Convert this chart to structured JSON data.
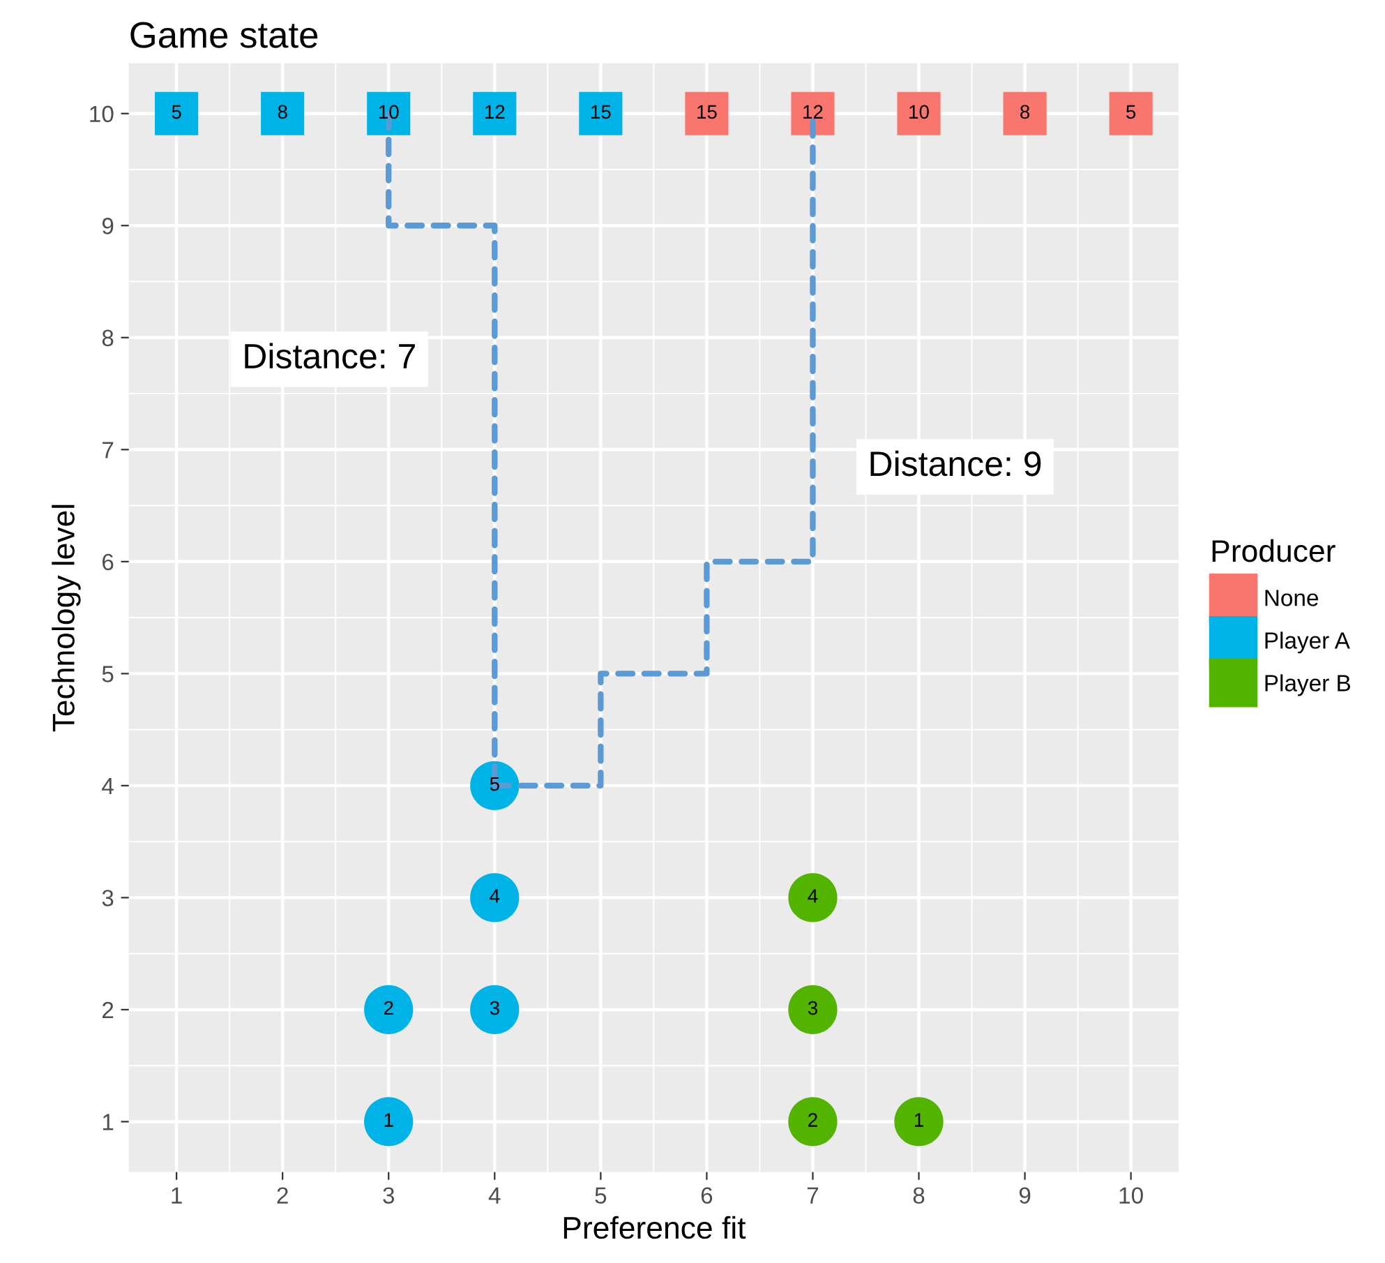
{
  "chart_data": {
    "type": "scatter",
    "title": "Game state",
    "xlabel": "Preference fit",
    "ylabel": "Technology level",
    "legend_title": "Producer",
    "xlim": [
      0.55,
      10.45
    ],
    "ylim": [
      0.55,
      10.45
    ],
    "xticks": [
      1,
      2,
      3,
      4,
      5,
      6,
      7,
      8,
      9,
      10
    ],
    "yticks": [
      1,
      2,
      3,
      4,
      5,
      6,
      7,
      8,
      9,
      10
    ],
    "grid": true,
    "legend": "right",
    "series": [
      {
        "type": "line",
        "color": "#5b9bd5",
        "line_style": "dashed",
        "marker": "none",
        "x": [
          3,
          3,
          4,
          4
        ],
        "values": [
          10,
          9,
          9,
          4
        ]
      },
      {
        "type": "line",
        "color": "#5b9bd5",
        "line_style": "dashed",
        "marker": "none",
        "x": [
          4,
          5,
          5,
          6,
          6,
          7,
          7
        ],
        "values": [
          4,
          4,
          5,
          5,
          6,
          6,
          10
        ]
      },
      {
        "name": "None",
        "color": "#f8766d",
        "marker": "square",
        "x": [
          6,
          7,
          8,
          9,
          10
        ],
        "values": [
          10,
          10,
          10,
          10,
          10
        ]
      },
      {
        "name": "Player A",
        "color": "#00b3e6",
        "marker": "square",
        "x": [
          1,
          2,
          3,
          4,
          5
        ],
        "values": [
          10,
          10,
          10,
          10,
          10
        ]
      },
      {
        "color": "#00b3e6",
        "marker": "circle",
        "x": [
          3,
          3,
          4,
          4,
          4
        ],
        "values": [
          1,
          2,
          2,
          3,
          4
        ]
      },
      {
        "name": "Player B",
        "color": "#53b400",
        "marker": "circle",
        "x": [
          8,
          7,
          7,
          7
        ],
        "values": [
          1,
          1,
          2,
          3
        ]
      }
    ],
    "annotations": [
      "Distance: 7",
      "Distance: 9",
      {
        "text": "5",
        "x": 1,
        "y": 10
      },
      {
        "text": "8",
        "x": 2,
        "y": 10
      },
      {
        "text": "10",
        "x": 3,
        "y": 10
      },
      {
        "text": "12",
        "x": 4,
        "y": 10
      },
      {
        "text": "15",
        "x": 5,
        "y": 10
      },
      {
        "text": "15",
        "x": 6,
        "y": 10
      },
      {
        "text": "12",
        "x": 7,
        "y": 10
      },
      {
        "text": "10",
        "x": 8,
        "y": 10
      },
      {
        "text": "8",
        "x": 9,
        "y": 10
      },
      {
        "text": "5",
        "x": 10,
        "y": 10
      },
      {
        "text": "1",
        "x": 3,
        "y": 1
      },
      {
        "text": "2",
        "x": 3,
        "y": 2
      },
      {
        "text": "3",
        "x": 4,
        "y": 2
      },
      {
        "text": "4",
        "x": 4,
        "y": 3
      },
      {
        "text": "5",
        "x": 4,
        "y": 4
      },
      {
        "text": "1",
        "x": 8,
        "y": 1
      },
      {
        "text": "2",
        "x": 7,
        "y": 1
      },
      {
        "text": "3",
        "x": 7,
        "y": 2
      },
      {
        "text": "4",
        "x": 7,
        "y": 3
      }
    ]
  }
}
